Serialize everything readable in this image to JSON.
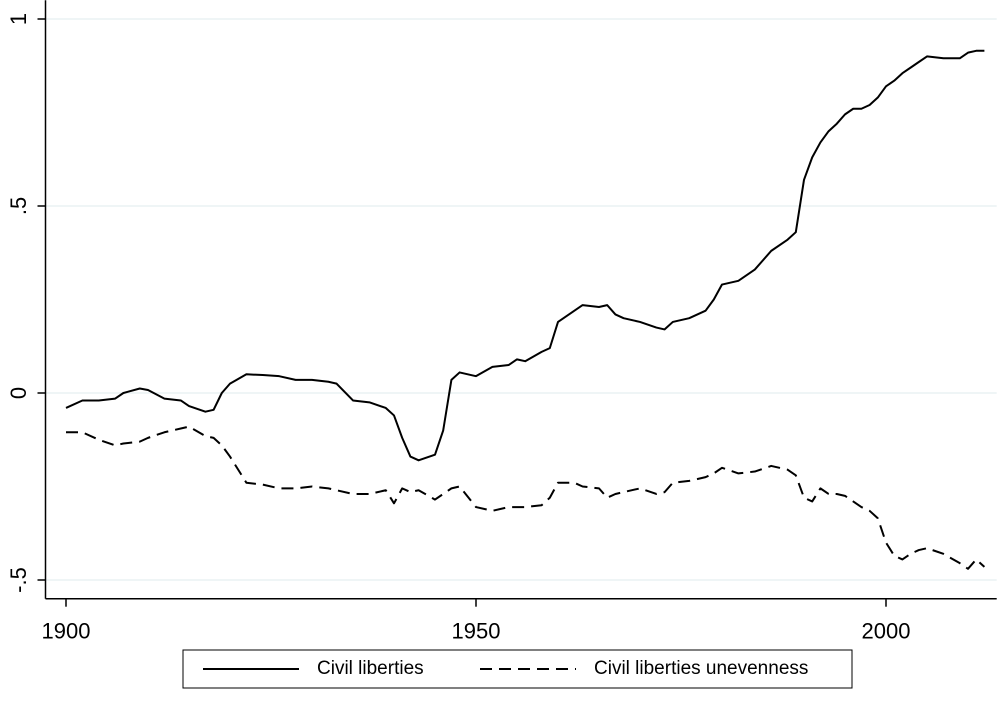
{
  "chart_data": {
    "type": "line",
    "x": [
      1900,
      1902,
      1904,
      1906,
      1907,
      1909,
      1910,
      1912,
      1914,
      1915,
      1917,
      1918,
      1919,
      1920,
      1922,
      1924,
      1926,
      1928,
      1930,
      1932,
      1933,
      1935,
      1937,
      1939,
      1940,
      1941,
      1942,
      1943,
      1945,
      1946,
      1947,
      1948,
      1950,
      1952,
      1954,
      1955,
      1956,
      1958,
      1959,
      1960,
      1962,
      1963,
      1965,
      1966,
      1967,
      1968,
      1970,
      1972,
      1973,
      1974,
      1976,
      1978,
      1979,
      1980,
      1982,
      1984,
      1986,
      1988,
      1989,
      1990,
      1991,
      1992,
      1993,
      1994,
      1995,
      1996,
      1997,
      1998,
      1999,
      2000,
      2001,
      2002,
      2003,
      2004,
      2005,
      2007,
      2009,
      2010,
      2011,
      2012
    ],
    "series": [
      {
        "name": "Civil liberties",
        "color": "#000000",
        "dash": false,
        "values": [
          -0.04,
          -0.02,
          -0.02,
          -0.015,
          0,
          0.012,
          0.008,
          -0.015,
          -0.02,
          -0.035,
          -0.05,
          -0.045,
          0,
          0.025,
          0.05,
          0.048,
          0.045,
          0.035,
          0.035,
          0.03,
          0.025,
          -0.02,
          -0.025,
          -0.04,
          -0.06,
          -0.12,
          -0.17,
          -0.18,
          -0.165,
          -0.1,
          0.035,
          0.055,
          0.045,
          0.07,
          0.075,
          0.09,
          0.085,
          0.11,
          0.12,
          0.19,
          0.22,
          0.235,
          0.23,
          0.235,
          0.21,
          0.2,
          0.19,
          0.175,
          0.17,
          0.19,
          0.2,
          0.22,
          0.25,
          0.29,
          0.3,
          0.33,
          0.38,
          0.41,
          0.43,
          0.57,
          0.63,
          0.67,
          0.7,
          0.72,
          0.745,
          0.76,
          0.76,
          0.77,
          0.79,
          0.82,
          0.835,
          0.855,
          0.87,
          0.885,
          0.9,
          0.895,
          0.895,
          0.91,
          0.915,
          0.915
        ]
      },
      {
        "name": "Civil liberties unevenness",
        "color": "#000000",
        "dash": true,
        "values": [
          -0.105,
          -0.105,
          -0.125,
          -0.14,
          -0.135,
          -0.13,
          -0.12,
          -0.105,
          -0.095,
          -0.09,
          -0.115,
          -0.12,
          -0.14,
          -0.17,
          -0.24,
          -0.245,
          -0.255,
          -0.255,
          -0.25,
          -0.255,
          -0.26,
          -0.27,
          -0.27,
          -0.26,
          -0.295,
          -0.255,
          -0.265,
          -0.26,
          -0.285,
          -0.27,
          -0.255,
          -0.25,
          -0.305,
          -0.315,
          -0.305,
          -0.305,
          -0.305,
          -0.3,
          -0.28,
          -0.24,
          -0.24,
          -0.25,
          -0.255,
          -0.28,
          -0.27,
          -0.265,
          -0.255,
          -0.27,
          -0.265,
          -0.24,
          -0.235,
          -0.225,
          -0.215,
          -0.2,
          -0.215,
          -0.21,
          -0.195,
          -0.205,
          -0.22,
          -0.28,
          -0.29,
          -0.255,
          -0.27,
          -0.27,
          -0.275,
          -0.29,
          -0.305,
          -0.315,
          -0.335,
          -0.4,
          -0.435,
          -0.445,
          -0.43,
          -0.42,
          -0.415,
          -0.43,
          -0.455,
          -0.47,
          -0.445,
          -0.465
        ]
      }
    ],
    "xlim": [
      1897.5,
      2013.5
    ],
    "xticks": [
      1900,
      1950,
      2000
    ],
    "ylim": [
      -0.55,
      1.05
    ],
    "yticks": [
      {
        "value": -0.5,
        "label": "-.5"
      },
      0,
      {
        "value": 0.5,
        "label": ".5"
      },
      1
    ],
    "grid": true,
    "legend": "bottom"
  }
}
